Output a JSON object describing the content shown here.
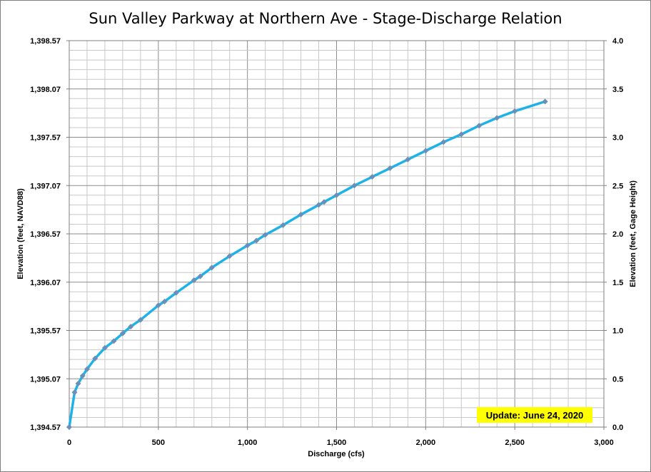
{
  "chart_data": {
    "type": "line",
    "title": "Sun Valley Parkway at Northern Ave - Stage-Discharge Relation",
    "xlabel": "Discharge  (cfs)",
    "ylabel": "Elevation (feet, NAVD88)",
    "y2label": "Elevation (feet, Gage Height)",
    "xlim": [
      0,
      3000
    ],
    "ylim": [
      1394.57,
      1398.57
    ],
    "y2lim": [
      0.0,
      4.0
    ],
    "x_ticks": [
      0,
      500,
      1000,
      1500,
      2000,
      2500,
      3000
    ],
    "x_tick_labels": [
      "0",
      "500",
      "1,000",
      "1,500",
      "2,000",
      "2,500",
      "3,000"
    ],
    "y_ticks": [
      1394.57,
      1395.07,
      1395.57,
      1396.07,
      1396.57,
      1397.07,
      1397.57,
      1398.07,
      1398.57
    ],
    "y_tick_labels": [
      "1,394.57",
      "1,395.07",
      "1,395.57",
      "1,396.07",
      "1,396.57",
      "1,397.07",
      "1,397.57",
      "1,398.07",
      "1,398.57"
    ],
    "y2_ticks": [
      0.0,
      0.5,
      1.0,
      1.5,
      2.0,
      2.5,
      3.0,
      3.5,
      4.0
    ],
    "y2_tick_labels": [
      "0.0",
      "0.5",
      "1.0",
      "1.5",
      "2.0",
      "2.5",
      "3.0",
      "3.5",
      "4.0"
    ],
    "grid": true,
    "minor_grid": true,
    "annotation": "Update: June 24, 2020",
    "series": [
      {
        "color": "#1fb2e8",
        "marker_color": "#6b8fb5",
        "points": [
          [
            0,
            1394.57
          ],
          [
            30,
            1394.93
          ],
          [
            50,
            1395.02
          ],
          [
            75,
            1395.1
          ],
          [
            100,
            1395.17
          ],
          [
            145,
            1395.28
          ],
          [
            200,
            1395.39
          ],
          [
            250,
            1395.46
          ],
          [
            300,
            1395.54
          ],
          [
            345,
            1395.61
          ],
          [
            400,
            1395.68
          ],
          [
            500,
            1395.83
          ],
          [
            535,
            1395.87
          ],
          [
            600,
            1395.96
          ],
          [
            700,
            1396.09
          ],
          [
            735,
            1396.13
          ],
          [
            800,
            1396.22
          ],
          [
            900,
            1396.34
          ],
          [
            1000,
            1396.45
          ],
          [
            1050,
            1396.5
          ],
          [
            1100,
            1396.56
          ],
          [
            1200,
            1396.66
          ],
          [
            1300,
            1396.77
          ],
          [
            1400,
            1396.87
          ],
          [
            1430,
            1396.9
          ],
          [
            1500,
            1396.97
          ],
          [
            1600,
            1397.07
          ],
          [
            1700,
            1397.16
          ],
          [
            1800,
            1397.25
          ],
          [
            1900,
            1397.34
          ],
          [
            2000,
            1397.43
          ],
          [
            2100,
            1397.52
          ],
          [
            2200,
            1397.6
          ],
          [
            2300,
            1397.69
          ],
          [
            2400,
            1397.77
          ],
          [
            2500,
            1397.84
          ],
          [
            2670,
            1397.94
          ]
        ]
      }
    ]
  }
}
